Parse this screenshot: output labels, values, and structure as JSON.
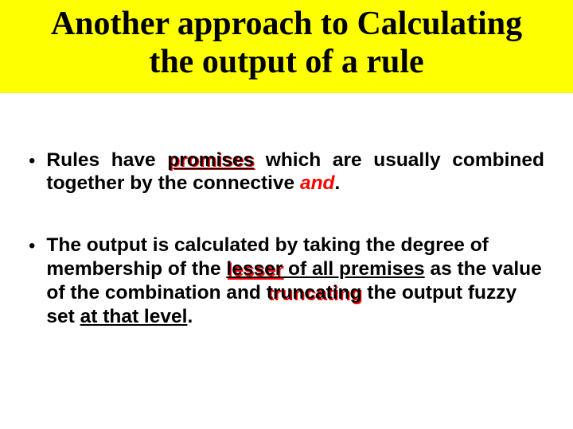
{
  "colors": {
    "title_bg": "#feff00",
    "text": "#000000",
    "accent": "#ff0000",
    "background": "#ffffff"
  },
  "typography": {
    "title_font_family": "Times New Roman",
    "body_font_family": "Arial",
    "title_fontsize_pt": 32,
    "body_fontsize_pt": 18,
    "title_weight": "bold",
    "body_weight": "bold"
  },
  "title": {
    "line1": "Another approach to Calculating",
    "line2": "the output of a rule"
  },
  "bullets": {
    "b1": {
      "seg1": "Rules have ",
      "promises": "promises",
      "seg2": " which are usually combined together by the connective ",
      "and": "and",
      "period": "."
    },
    "b2": {
      "seg1": "The output is calculated by taking the degree of membership of the ",
      "lesser": "lesser",
      "seg2": " of all premises",
      "seg3": " as the value of the combination and ",
      "truncating": "truncating",
      "seg4": " the output fuzzy set ",
      "atlevel": "at that level",
      "period": "."
    }
  }
}
